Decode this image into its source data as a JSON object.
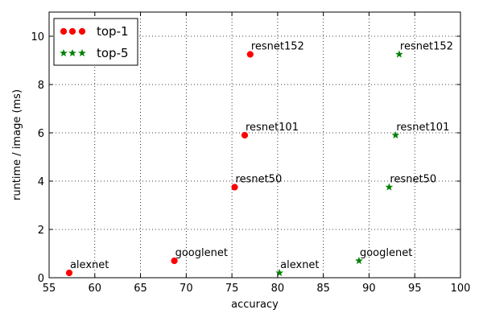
{
  "chart_data": {
    "type": "scatter",
    "xlabel": "accuracy",
    "ylabel": "runtime / image (ms)",
    "xlim": [
      55,
      100
    ],
    "ylim": [
      0,
      11
    ],
    "x_ticks": [
      55,
      60,
      65,
      70,
      75,
      80,
      85,
      90,
      95,
      100
    ],
    "y_ticks": [
      0,
      2,
      4,
      6,
      8,
      10
    ],
    "grid": true,
    "legend_position": "top-left",
    "series": [
      {
        "name": "top-1",
        "marker": "circle",
        "color": "#ff0000",
        "points": [
          {
            "label": "alexnet",
            "x": 57.2,
            "y": 0.2
          },
          {
            "label": "googlenet",
            "x": 68.7,
            "y": 0.7
          },
          {
            "label": "resnet50",
            "x": 75.3,
            "y": 3.75
          },
          {
            "label": "resnet101",
            "x": 76.4,
            "y": 5.9
          },
          {
            "label": "resnet152",
            "x": 77.0,
            "y": 9.25
          }
        ]
      },
      {
        "name": "top-5",
        "marker": "star",
        "color": "#008000",
        "points": [
          {
            "label": "alexnet",
            "x": 80.2,
            "y": 0.2
          },
          {
            "label": "googlenet",
            "x": 88.9,
            "y": 0.7
          },
          {
            "label": "resnet50",
            "x": 92.2,
            "y": 3.75
          },
          {
            "label": "resnet101",
            "x": 92.9,
            "y": 5.9
          },
          {
            "label": "resnet152",
            "x": 93.3,
            "y": 9.25
          }
        ]
      }
    ]
  }
}
